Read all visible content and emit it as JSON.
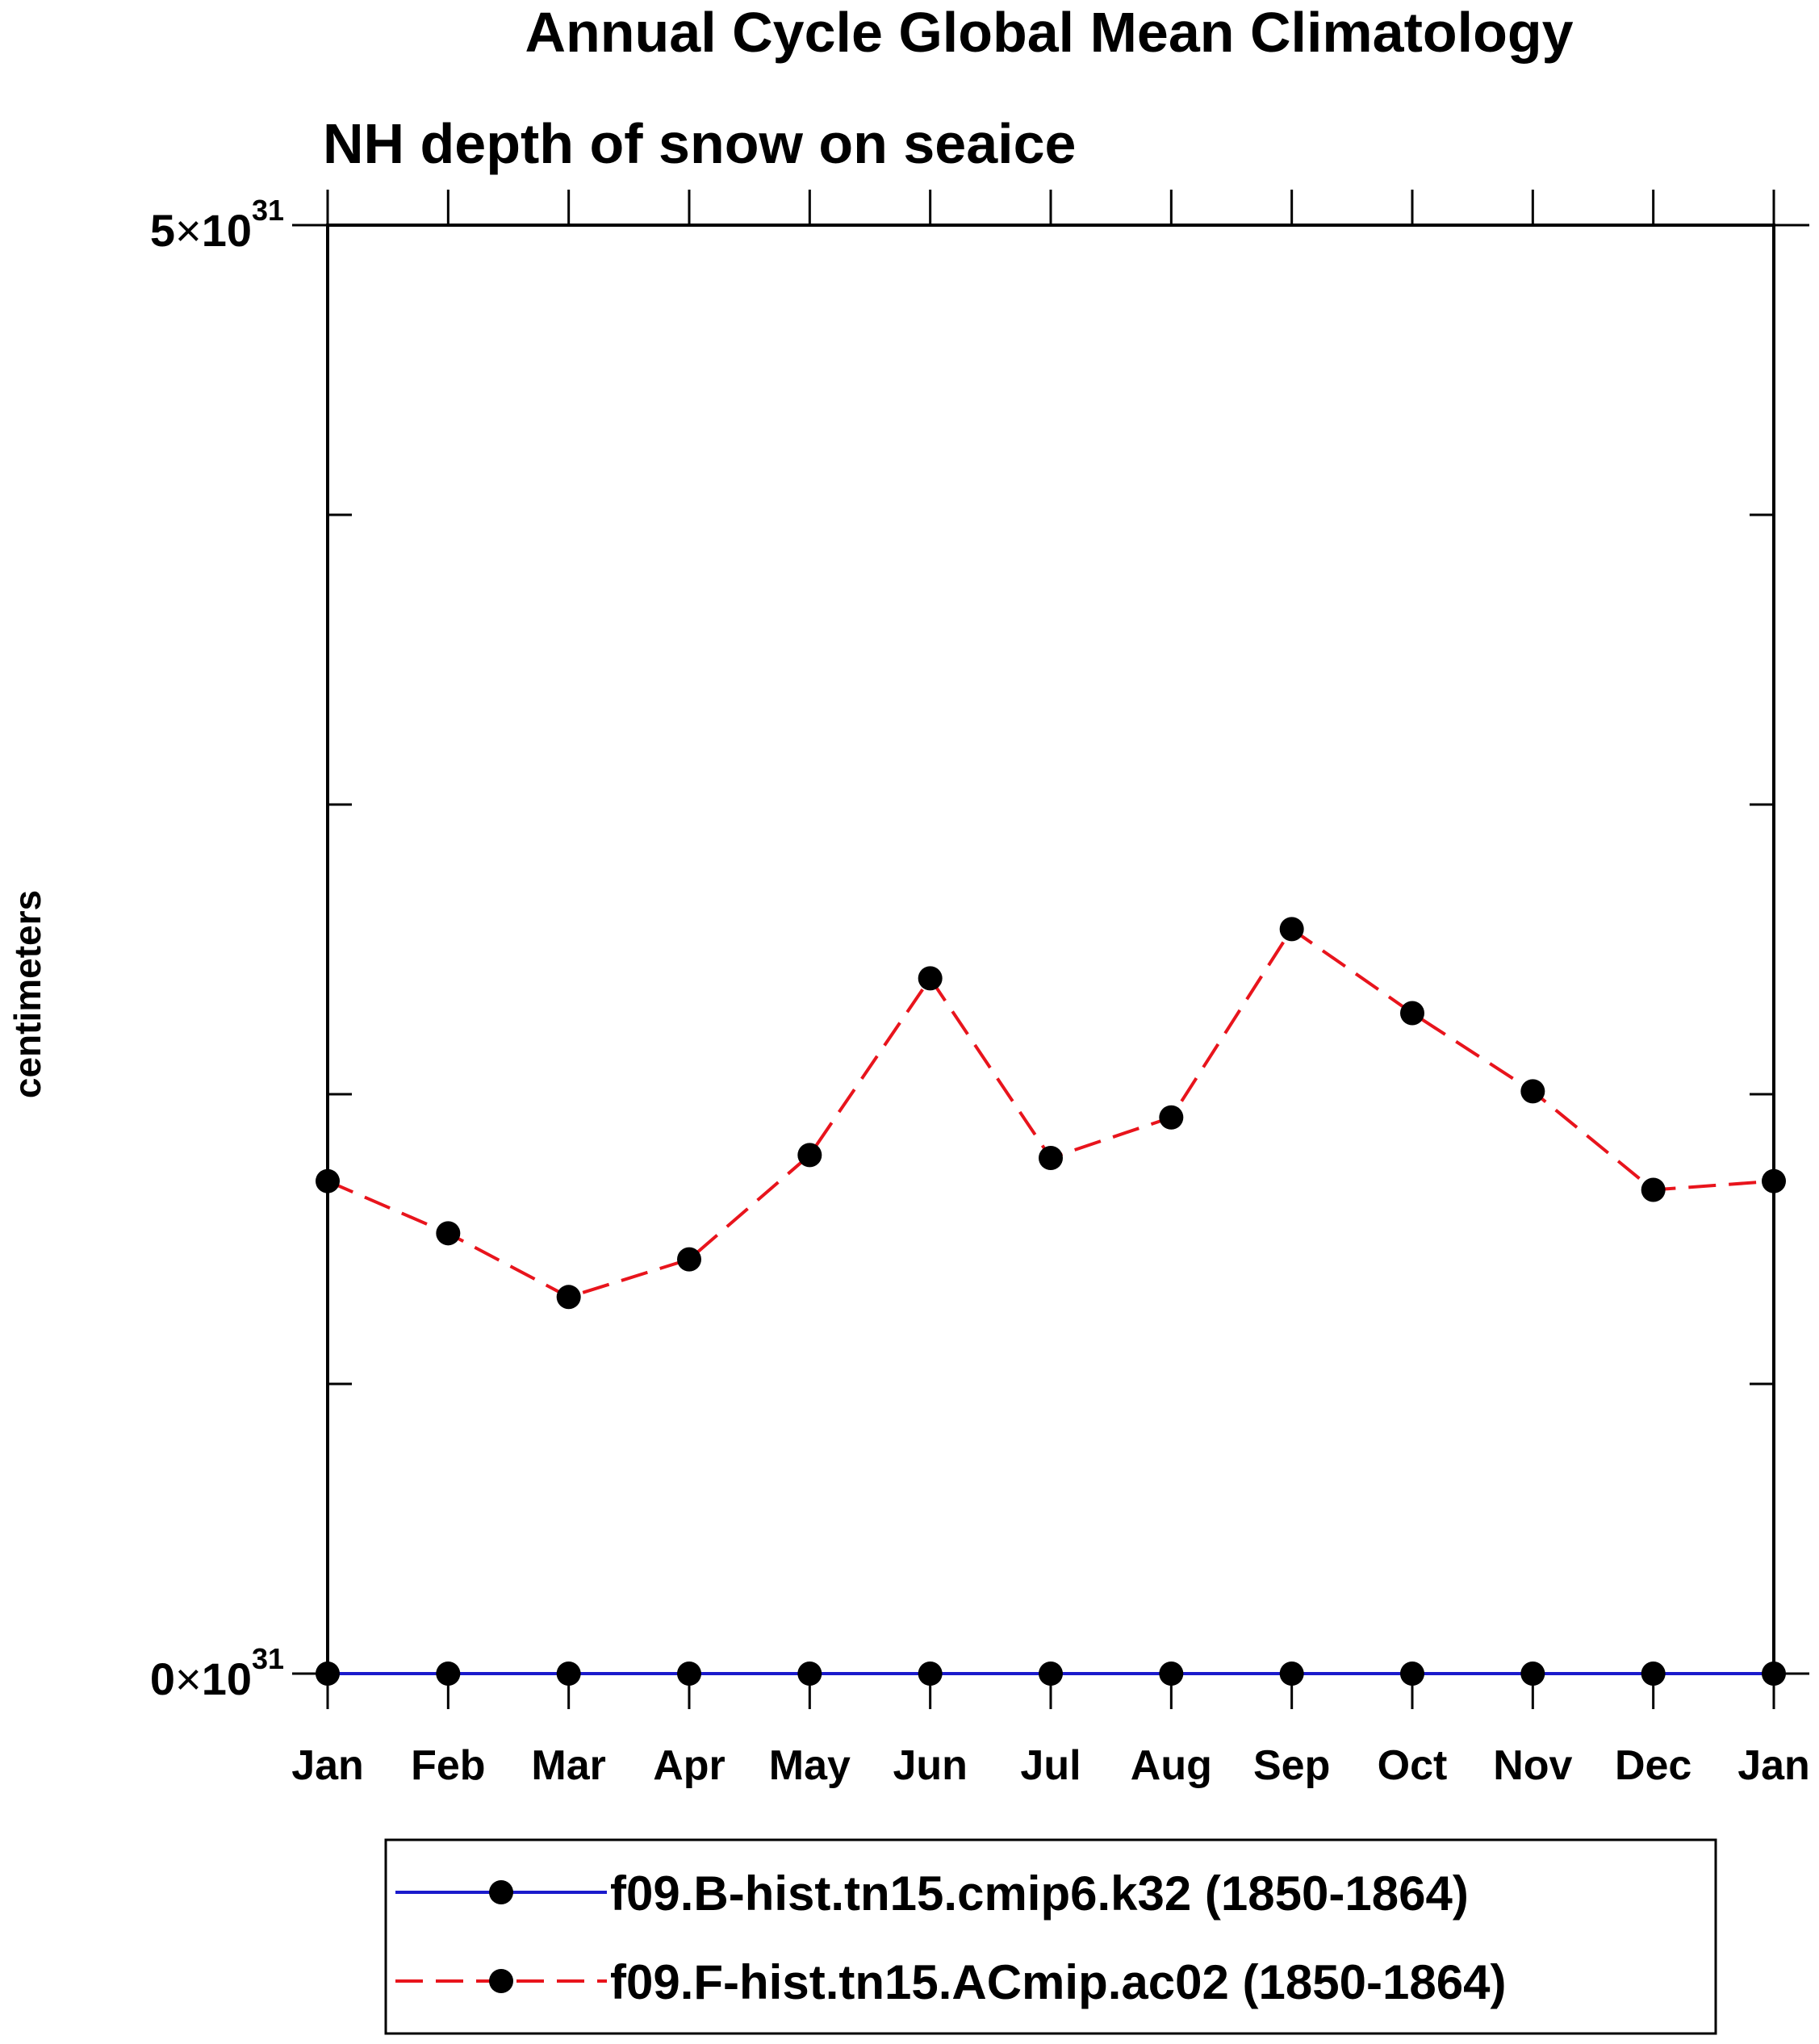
{
  "chart_data": {
    "type": "line",
    "title": "Annual Cycle Global Mean Climatology",
    "subtitle": "NH depth of snow on seaice",
    "ylabel": "centimeters",
    "xlabel": "",
    "categories": [
      "Jan",
      "Feb",
      "Mar",
      "Apr",
      "May",
      "Jun",
      "Jul",
      "Aug",
      "Sep",
      "Oct",
      "Nov",
      "Dec",
      "Jan"
    ],
    "ylim": [
      0,
      5e+31
    ],
    "y_ticks": [
      {
        "value": 0,
        "mantissa": "0",
        "base": "10",
        "exponent": "31"
      },
      {
        "value": 5e+31,
        "mantissa": "5",
        "base": "10",
        "exponent": "31"
      }
    ],
    "y_minor_ticks": [
      1e+31,
      2e+31,
      3e+31,
      4e+31
    ],
    "times_sign": "×",
    "series": [
      {
        "name": "f09.B-hist.tn15.cmip6.k32 (1850-1864)",
        "color": "#1a1acc",
        "dash": "solid",
        "marker": "filled-circle",
        "values": [
          0,
          0,
          0,
          0,
          0,
          0,
          0,
          0,
          0,
          0,
          0,
          0,
          0
        ]
      },
      {
        "name": "f09.F-hist.tn15.ACmip.ac02 (1850-1864)",
        "color": "#e8141c",
        "dash": "dashed",
        "marker": "filled-circle",
        "values": [
          1.7e+31,
          1.52e+31,
          1.3e+31,
          1.43e+31,
          1.79e+31,
          2.4e+31,
          1.78e+31,
          1.92e+31,
          2.57e+31,
          2.28e+31,
          2.01e+31,
          1.67e+31,
          1.7e+31
        ]
      }
    ],
    "legend_position": "bottom-right",
    "grid": false
  }
}
